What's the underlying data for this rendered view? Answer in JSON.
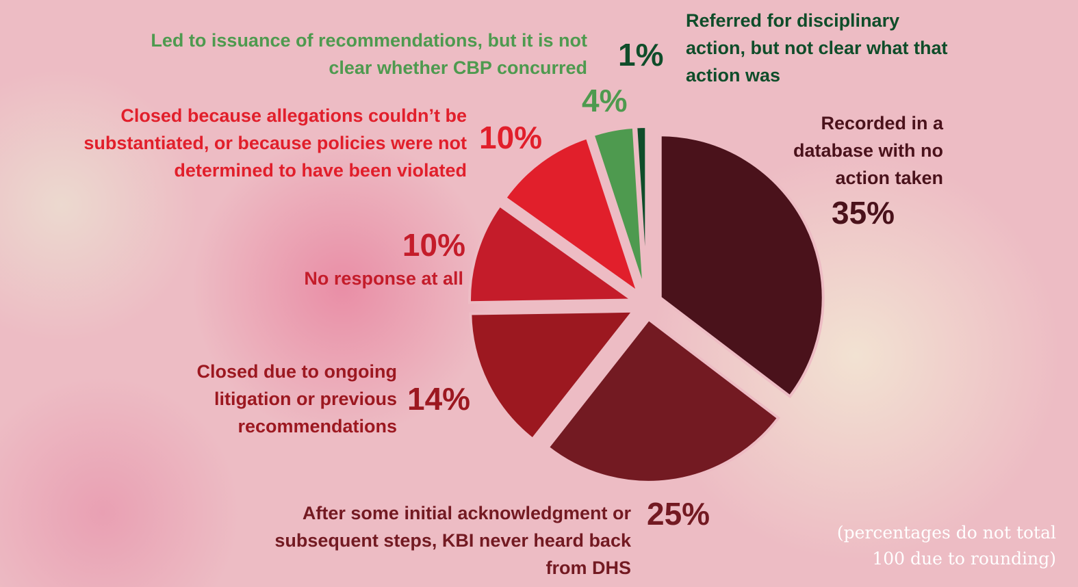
{
  "chart_data": {
    "type": "pie",
    "categories": [
      "Recorded in a database with no action taken",
      "After some initial acknowledgment or subsequent steps, KBI never heard back from DHS",
      "Closed due to ongoing litigation or previous recommendations",
      "No response at all",
      "Closed because allegations couldn’t be substantiated, or because policies were not determined to have been violated",
      "Led to issuance of recommendations, but it is not clear whether CBP concurred",
      "Referred for disciplinary action, but not clear what that action was"
    ],
    "values": [
      35,
      25,
      14,
      10,
      10,
      4,
      1
    ],
    "value_labels": [
      "35%",
      "25%",
      "14%",
      "10%",
      "10%",
      "4%",
      "1%"
    ],
    "colors": [
      "#4a121b",
      "#731a22",
      "#9c1820",
      "#c41c2a",
      "#e11f2b",
      "#4e9a4f",
      "#0f4d2a"
    ],
    "note": "(percentages do not total 100 due to rounding)"
  }
}
